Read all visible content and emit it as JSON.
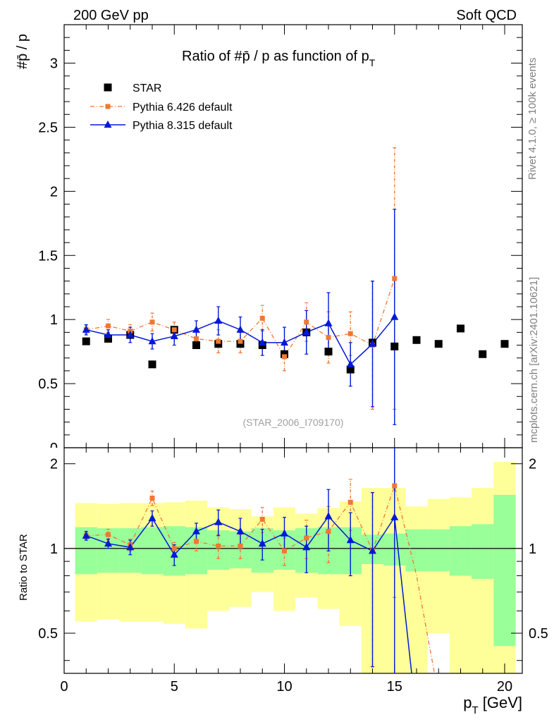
{
  "header": {
    "left": "200 GeV pp",
    "right": "Soft QCD"
  },
  "side": {
    "rivet": "Rivet 4.1.0, ≥ 100k events",
    "mcplots": "mcplots.cern.ch [arXiv:2401.10621]"
  },
  "chart_data": {
    "type": "scatter",
    "title": "Ratio of #p̄ / p as function of p_T",
    "title_main": "Ratio of #p̄ / p as function of p",
    "title_sub": "T",
    "analysis_id": "(STAR_2006_I709170)",
    "xlabel_main": "p",
    "xlabel_sub": "T",
    "xlabel_unit": "[GeV]",
    "ylabel_top": "#p̄ / p",
    "ylabel_bottom": "Ratio to STAR",
    "xlim": [
      0,
      20.8
    ],
    "ylim_top": [
      0,
      3.3
    ],
    "ylim_bottom": [
      0.36,
      2.28
    ],
    "xticks": [
      "0",
      "5",
      "10",
      "15",
      "20"
    ],
    "yticks_top": [
      "0.5",
      "1",
      "1.5",
      "2",
      "2.5",
      "3"
    ],
    "yticks_bottom": [
      "0.5",
      "1",
      "2"
    ],
    "legend": [
      "STAR",
      "Pythia 6.426 default",
      "Pythia 8.315 default"
    ],
    "series": [
      {
        "name": "STAR",
        "color": "#000000",
        "x": [
          1,
          2,
          3,
          4,
          5,
          6,
          7,
          8,
          9,
          10,
          11,
          12,
          13,
          14,
          15,
          16,
          17,
          18,
          19,
          20
        ],
        "y": [
          0.83,
          0.85,
          0.88,
          0.65,
          0.92,
          0.8,
          0.81,
          0.81,
          0.8,
          0.73,
          0.9,
          0.75,
          0.61,
          0.82,
          0.79,
          0.84,
          0.81,
          0.93,
          0.73,
          0.81
        ]
      },
      {
        "name": "Pythia 6.426 default",
        "color": "#f07830",
        "x": [
          1,
          2,
          3,
          4,
          5,
          6,
          7,
          8,
          9,
          10,
          11,
          12,
          13,
          14,
          15
        ],
        "y": [
          0.92,
          0.95,
          0.91,
          0.98,
          0.92,
          0.85,
          0.83,
          0.83,
          1.01,
          0.71,
          0.98,
          0.86,
          0.89,
          0.8,
          1.32
        ],
        "err": [
          0.03,
          0.05,
          0.05,
          0.07,
          0.06,
          0.07,
          0.09,
          0.09,
          0.1,
          0.11,
          0.15,
          0.2,
          0.17,
          0.5,
          1.02
        ]
      },
      {
        "name": "Pythia 8.315 default",
        "color": "#0018d8",
        "x": [
          1,
          2,
          3,
          4,
          5,
          6,
          7,
          8,
          9,
          10,
          11,
          12,
          13,
          14,
          15
        ],
        "y": [
          0.92,
          0.88,
          0.88,
          0.83,
          0.87,
          0.92,
          0.99,
          0.92,
          0.82,
          0.82,
          0.9,
          0.97,
          0.65,
          0.81,
          1.02
        ],
        "err": [
          0.04,
          0.04,
          0.06,
          0.06,
          0.07,
          0.07,
          0.11,
          0.1,
          0.1,
          0.12,
          0.17,
          0.24,
          0.17,
          0.49,
          0.84
        ]
      }
    ],
    "ratio_bands": {
      "x_edges": [
        0.5,
        1.5,
        2.5,
        3.5,
        4.5,
        5.5,
        6.5,
        7.5,
        8.5,
        9.5,
        10.5,
        11.5,
        12.5,
        13.5,
        14.5,
        15.5,
        16.5,
        17.5,
        18.5,
        19.5,
        20.5
      ],
      "inner_lo": [
        0.81,
        0.82,
        0.82,
        0.81,
        0.8,
        0.81,
        0.84,
        0.85,
        0.82,
        0.84,
        0.82,
        0.81,
        0.81,
        0.88,
        0.87,
        0.83,
        0.83,
        0.8,
        0.78,
        0.45
      ],
      "inner_hi": [
        1.19,
        1.18,
        1.18,
        1.19,
        1.2,
        1.19,
        1.16,
        1.15,
        1.18,
        1.16,
        1.18,
        1.19,
        1.19,
        1.12,
        1.13,
        1.17,
        1.17,
        1.2,
        1.22,
        1.55
      ],
      "outer_lo": [
        0.55,
        0.56,
        0.55,
        0.55,
        0.54,
        0.52,
        0.6,
        0.62,
        0.7,
        0.6,
        0.67,
        0.61,
        0.53,
        0.36,
        0.36,
        0.36,
        0.5,
        0.36,
        0.36,
        0.36
      ],
      "outer_hi": [
        1.45,
        1.44,
        1.45,
        1.45,
        1.46,
        1.48,
        1.4,
        1.38,
        1.3,
        1.4,
        1.33,
        1.39,
        1.47,
        1.64,
        1.64,
        1.41,
        1.5,
        1.52,
        1.64,
        2.03
      ]
    },
    "ratio_series": [
      {
        "name": "Pythia 6.426 default",
        "x": [
          1,
          2,
          3,
          4,
          5,
          6,
          7,
          8,
          9,
          10,
          11,
          12,
          13,
          14,
          15,
          16,
          17
        ],
        "y": [
          1.11,
          1.12,
          1.03,
          1.51,
          1.0,
          1.06,
          1.02,
          1.02,
          1.27,
          0.98,
          1.09,
          1.15,
          1.46,
          0.98,
          1.67,
          0.8,
          0.3
        ],
        "err": [
          0.03,
          0.05,
          0.05,
          0.09,
          0.05,
          0.08,
          0.1,
          0.1,
          0.13,
          0.11,
          0.17,
          0.26,
          0.3,
          0.6,
          1.0,
          0,
          0
        ]
      },
      {
        "name": "Pythia 8.315 default",
        "x": [
          1,
          2,
          3,
          4,
          5,
          6,
          7,
          8,
          9,
          10,
          11,
          12,
          13,
          14,
          15,
          16
        ],
        "y": [
          1.11,
          1.04,
          1.01,
          1.28,
          0.95,
          1.15,
          1.24,
          1.15,
          1.04,
          1.13,
          1.01,
          1.3,
          1.07,
          0.98,
          1.29,
          0.25
        ],
        "err": [
          0.04,
          0.04,
          0.06,
          0.08,
          0.08,
          0.08,
          0.13,
          0.13,
          0.13,
          0.16,
          0.19,
          0.32,
          0.27,
          0.6,
          1.0,
          0
        ]
      }
    ]
  }
}
